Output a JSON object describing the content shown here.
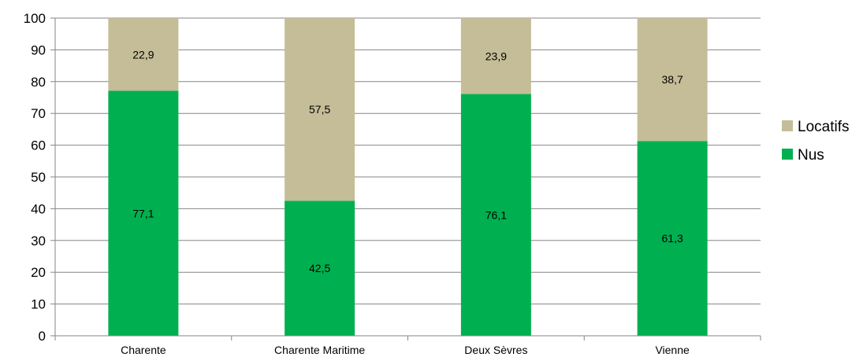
{
  "chart_data": {
    "type": "bar",
    "stacked": true,
    "categories": [
      "Charente",
      "Charente Maritime",
      "Deux Sèvres",
      "Vienne"
    ],
    "series": [
      {
        "name": "Nus",
        "values": [
          77.1,
          42.5,
          76.1,
          61.3
        ],
        "labels": [
          "77,1",
          "42,5",
          "76,1",
          "61,3"
        ],
        "color": "#00B050"
      },
      {
        "name": "Locatifs",
        "values": [
          22.9,
          57.5,
          23.9,
          38.7
        ],
        "labels": [
          "22,9",
          "57,5",
          "23,9",
          "38,7"
        ],
        "color": "#C4BD97"
      }
    ],
    "ylim": [
      0,
      100
    ],
    "yticks": [
      "0",
      "10",
      "20",
      "30",
      "40",
      "50",
      "60",
      "70",
      "80",
      "90",
      "100"
    ],
    "grid": true,
    "legend": {
      "position": "right",
      "entries": [
        {
          "label": "Locatifs",
          "color": "#C4BD97"
        },
        {
          "label": "Nus",
          "color": "#00B050"
        }
      ]
    }
  }
}
